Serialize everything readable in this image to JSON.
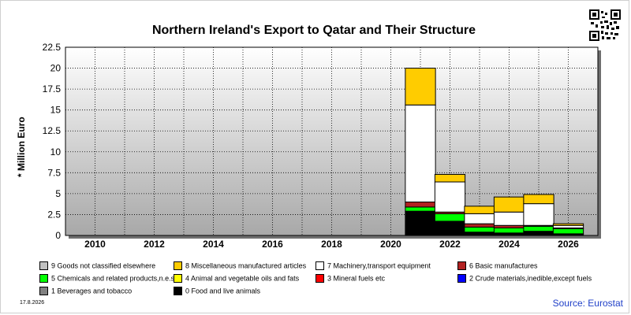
{
  "page": {
    "title": "Northern Ireland's Export to Qatar and Their Structure",
    "date": "17.8.2026",
    "source": "Source: Eurostat"
  },
  "colors": {
    "plot_background_top": "#ffffff",
    "plot_background_bottom": "#a8a8a8",
    "source_text": "#1f3fc8"
  },
  "chart_data": {
    "type": "bar",
    "stacked": true,
    "title": "Northern Ireland's Export to Qatar and Their Structure",
    "ylabel": "* Million Euro",
    "xlabel": "",
    "ylim": [
      0,
      22.5
    ],
    "yticks": [
      "22.5",
      "20",
      "17.5",
      "15",
      "12.5",
      "10",
      "7.5",
      "5",
      "2.5",
      "0"
    ],
    "xlim": [
      2009,
      2027
    ],
    "xticks": [
      "2010",
      "2012",
      "2014",
      "2016",
      "2018",
      "2020",
      "2022",
      "2024",
      "2026"
    ],
    "grid": true,
    "legend_position": "bottom",
    "categories": [
      "2021",
      "2022",
      "2023",
      "2024",
      "2025",
      "2026"
    ],
    "series": [
      {
        "name": "0 Food and live animals",
        "color": "#000000",
        "values": [
          2.9,
          1.7,
          0.4,
          0.3,
          0.5,
          0.2
        ]
      },
      {
        "name": "1 Beverages and tobacco",
        "color": "#808080",
        "values": [
          0,
          0,
          0,
          0,
          0,
          0
        ]
      },
      {
        "name": "2 Crude materials,inedible,except fuels",
        "color": "#0000ff",
        "values": [
          0,
          0,
          0,
          0,
          0,
          0
        ]
      },
      {
        "name": "3 Mineral fuels etc",
        "color": "#ff0000",
        "values": [
          0,
          0,
          0,
          0,
          0,
          0
        ]
      },
      {
        "name": "4 Animal and vegetable oils and fats",
        "color": "#ffff00",
        "values": [
          0,
          0,
          0,
          0,
          0,
          0
        ]
      },
      {
        "name": "5 Chemicals and related products,n.e.s.",
        "color": "#00ff00",
        "values": [
          0.5,
          0.9,
          0.6,
          0.6,
          0.6,
          0.6
        ]
      },
      {
        "name": "6 Basic manufactures",
        "color": "#b22222",
        "values": [
          0.6,
          0.2,
          0.4,
          0.3,
          0.1,
          0.1
        ]
      },
      {
        "name": "7 Machinery,transport equipment",
        "color": "#ffffff",
        "values": [
          11.6,
          3.6,
          1.2,
          1.6,
          2.6,
          0.3
        ]
      },
      {
        "name": "8 Miscellaneous manufactured articles",
        "color": "#ffcc00",
        "values": [
          4.4,
          0.9,
          0.9,
          1.8,
          1.1,
          0.2
        ]
      },
      {
        "name": "9 Goods not classified elsewhere",
        "color": "#c0c0c0",
        "values": [
          0,
          0,
          0,
          0,
          0,
          0
        ]
      }
    ]
  },
  "legend": {
    "rows": [
      [
        {
          "label": "9 Goods not classified elsewhere",
          "color": "#c0c0c0"
        },
        {
          "label": "8 Miscellaneous manufactured articles",
          "color": "#ffcc00"
        },
        {
          "label": "7 Machinery,transport equipment",
          "color": "#ffffff"
        },
        {
          "label": "6 Basic manufactures",
          "color": "#b22222"
        }
      ],
      [
        {
          "label": "5 Chemicals and related products,n.e.s.",
          "color": "#00ff00"
        },
        {
          "label": "4 Animal and vegetable oils and fats",
          "color": "#ffff00"
        },
        {
          "label": "3 Mineral fuels etc",
          "color": "#ff0000"
        },
        {
          "label": "2 Crude materials,inedible,except fuels",
          "color": "#0000ff"
        }
      ],
      [
        {
          "label": "1 Beverages and tobacco",
          "color": "#808080"
        },
        {
          "label": "0 Food and live animals",
          "color": "#000000"
        }
      ]
    ]
  }
}
